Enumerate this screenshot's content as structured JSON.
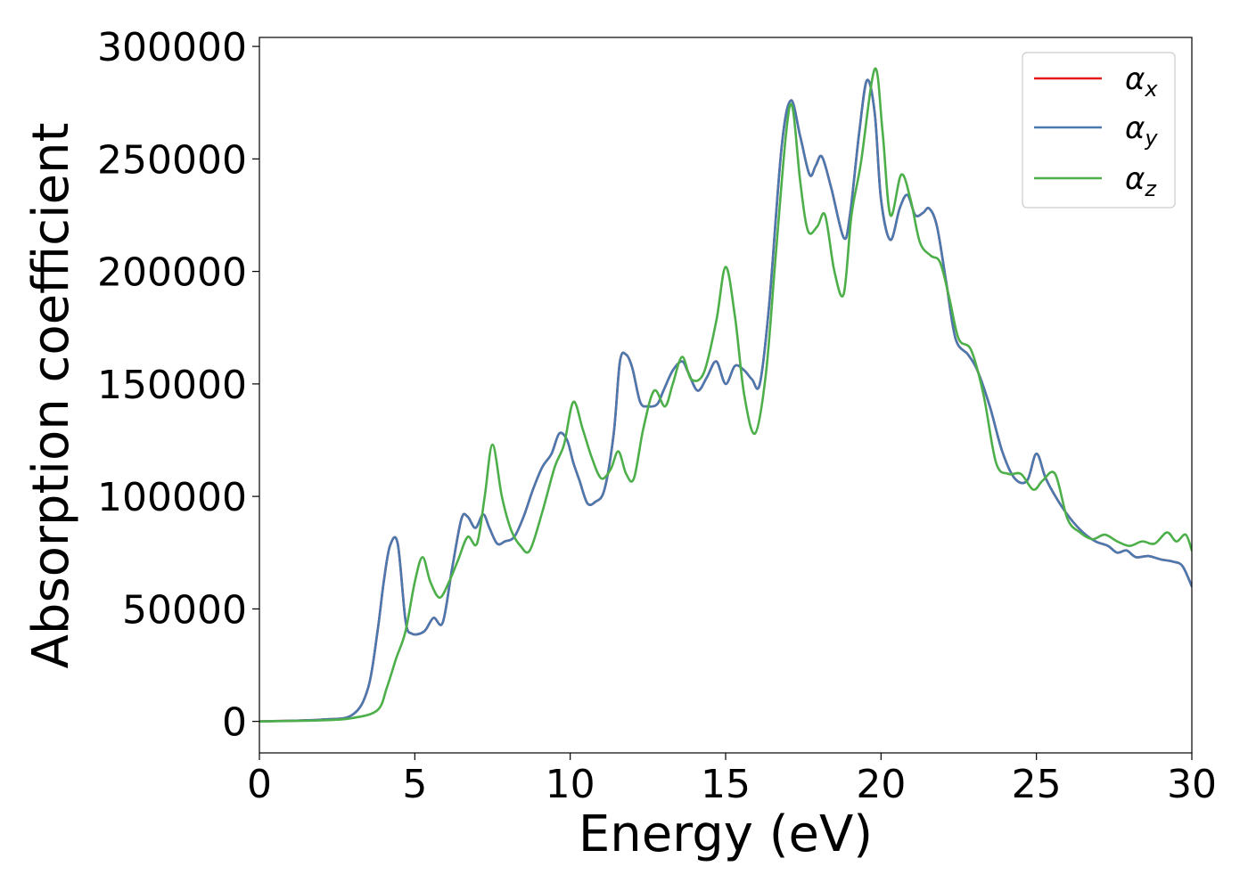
{
  "chart_data": {
    "type": "line",
    "xlabel": "Energy (eV)",
    "ylabel": "Absorption coefficient",
    "xlim": [
      0,
      30
    ],
    "ylim": [
      -14000,
      304000
    ],
    "xticks": [
      0,
      5,
      10,
      15,
      20,
      25,
      30
    ],
    "yticks": [
      0,
      50000,
      100000,
      150000,
      200000,
      250000,
      300000
    ],
    "grid": false,
    "legend_position": "top-right",
    "series": [
      {
        "name": "α_x",
        "legend_main": "α",
        "legend_sub": "x",
        "color": "#e41a1c",
        "x": [
          0,
          2,
          3,
          3.5,
          3.8,
          4.0,
          4.2,
          4.45,
          4.7,
          4.9,
          5.3,
          5.6,
          5.9,
          6.2,
          6.5,
          6.7,
          6.95,
          7.2,
          7.4,
          7.65,
          7.9,
          8.2,
          8.5,
          8.8,
          9.1,
          9.4,
          9.65,
          9.9,
          10.1,
          10.3,
          10.55,
          10.8,
          11.1,
          11.4,
          11.6,
          11.8,
          12.0,
          12.25,
          12.5,
          12.8,
          13.0,
          13.3,
          13.6,
          13.8,
          14.1,
          14.4,
          14.7,
          15.0,
          15.3,
          15.6,
          15.85,
          16.1,
          16.4,
          16.8,
          17.1,
          17.4,
          17.7,
          17.9,
          18.1,
          18.4,
          18.8,
          19.0,
          19.3,
          19.55,
          19.8,
          20.0,
          20.3,
          20.6,
          20.85,
          21.1,
          21.35,
          21.55,
          21.8,
          22.1,
          22.4,
          22.8,
          23.1,
          23.5,
          23.9,
          24.3,
          24.7,
          25.0,
          25.3,
          25.7,
          26.1,
          26.5,
          26.9,
          27.3,
          27.6,
          27.9,
          28.2,
          28.6,
          29.0,
          29.4,
          29.7,
          30.0
        ],
        "y": [
          0,
          800,
          3000,
          15000,
          40000,
          62000,
          78000,
          79000,
          45000,
          39000,
          40000,
          46000,
          44000,
          68000,
          90000,
          91000,
          86000,
          92000,
          86000,
          79000,
          80000,
          82000,
          91000,
          103000,
          113000,
          119000,
          128000,
          125000,
          115000,
          107000,
          97000,
          97500,
          103000,
          128000,
          160000,
          163000,
          157000,
          142000,
          140000,
          141000,
          147000,
          156000,
          160000,
          155000,
          147000,
          153000,
          160000,
          150000,
          158000,
          156000,
          152000,
          150000,
          185000,
          255000,
          276000,
          260000,
          243000,
          247000,
          251000,
          237000,
          215000,
          225000,
          262000,
          285000,
          270000,
          232000,
          214000,
          228000,
          234000,
          225000,
          226000,
          228000,
          220000,
          195000,
          170000,
          163000,
          156000,
          140000,
          120000,
          108000,
          107000,
          119000,
          108000,
          98000,
          90000,
          84000,
          80000,
          78000,
          75000,
          76000,
          73000,
          73500,
          72000,
          71000,
          69000,
          60000
        ]
      },
      {
        "name": "α_y",
        "legend_main": "α",
        "legend_sub": "y",
        "color": "#4a79b0",
        "x": [
          0,
          2,
          3,
          3.5,
          3.8,
          4.0,
          4.2,
          4.45,
          4.7,
          4.9,
          5.3,
          5.6,
          5.9,
          6.2,
          6.5,
          6.7,
          6.95,
          7.2,
          7.4,
          7.65,
          7.9,
          8.2,
          8.5,
          8.8,
          9.1,
          9.4,
          9.65,
          9.9,
          10.1,
          10.3,
          10.55,
          10.8,
          11.1,
          11.4,
          11.6,
          11.8,
          12.0,
          12.25,
          12.5,
          12.8,
          13.0,
          13.3,
          13.6,
          13.8,
          14.1,
          14.4,
          14.7,
          15.0,
          15.3,
          15.6,
          15.85,
          16.1,
          16.4,
          16.8,
          17.1,
          17.4,
          17.7,
          17.9,
          18.1,
          18.4,
          18.8,
          19.0,
          19.3,
          19.55,
          19.8,
          20.0,
          20.3,
          20.6,
          20.85,
          21.1,
          21.35,
          21.55,
          21.8,
          22.1,
          22.4,
          22.8,
          23.1,
          23.5,
          23.9,
          24.3,
          24.7,
          25.0,
          25.3,
          25.7,
          26.1,
          26.5,
          26.9,
          27.3,
          27.6,
          27.9,
          28.2,
          28.6,
          29.0,
          29.4,
          29.7,
          30.0
        ],
        "y": [
          0,
          800,
          3000,
          15000,
          40000,
          62000,
          78000,
          79000,
          45000,
          39000,
          40000,
          46000,
          44000,
          68000,
          90000,
          91000,
          86000,
          92000,
          86000,
          79000,
          80000,
          82000,
          91000,
          103000,
          113000,
          119000,
          128000,
          125000,
          115000,
          107000,
          97000,
          97500,
          103000,
          128000,
          160000,
          163000,
          157000,
          142000,
          140000,
          141000,
          147000,
          156000,
          160000,
          155000,
          147000,
          153000,
          160000,
          150000,
          158000,
          156000,
          152000,
          150000,
          185000,
          255000,
          276000,
          260000,
          243000,
          247000,
          251000,
          237000,
          215000,
          225000,
          262000,
          285000,
          270000,
          232000,
          214000,
          228000,
          234000,
          225000,
          226000,
          228000,
          220000,
          195000,
          170000,
          163000,
          156000,
          140000,
          120000,
          108000,
          107000,
          119000,
          108000,
          98000,
          90000,
          84000,
          80000,
          78000,
          75000,
          76000,
          73000,
          73500,
          72000,
          71000,
          69000,
          60000
        ]
      },
      {
        "name": "α_z",
        "legend_main": "α",
        "legend_sub": "z",
        "color": "#4daf4a",
        "x": [
          0,
          2,
          3,
          3.8,
          4.1,
          4.4,
          4.7,
          5.0,
          5.25,
          5.5,
          5.8,
          6.1,
          6.4,
          6.7,
          7.0,
          7.25,
          7.5,
          7.8,
          8.1,
          8.4,
          8.7,
          9.1,
          9.5,
          9.8,
          10.1,
          10.4,
          10.7,
          11.0,
          11.3,
          11.55,
          11.8,
          12.05,
          12.35,
          12.7,
          13.05,
          13.3,
          13.6,
          13.9,
          14.3,
          14.7,
          15.0,
          15.3,
          15.6,
          15.95,
          16.3,
          16.6,
          16.95,
          17.15,
          17.4,
          17.65,
          17.95,
          18.2,
          18.5,
          18.8,
          19.05,
          19.35,
          19.8,
          20.05,
          20.3,
          20.65,
          20.95,
          21.25,
          21.6,
          21.9,
          22.2,
          22.5,
          22.9,
          23.3,
          23.7,
          24.1,
          24.5,
          24.9,
          25.2,
          25.6,
          26.0,
          26.4,
          26.8,
          27.2,
          27.6,
          28.0,
          28.4,
          28.8,
          29.2,
          29.5,
          29.8,
          30.0
        ],
        "y": [
          0,
          500,
          1500,
          5000,
          15000,
          28000,
          40000,
          62000,
          73000,
          62000,
          55000,
          62000,
          72000,
          82000,
          79000,
          100000,
          123000,
          100000,
          85000,
          78000,
          76000,
          93000,
          113000,
          123000,
          142000,
          130000,
          117000,
          108000,
          112000,
          120000,
          110000,
          108000,
          130000,
          147000,
          140000,
          150000,
          162000,
          152000,
          155000,
          178000,
          202000,
          180000,
          145000,
          128000,
          155000,
          205000,
          262000,
          273000,
          240000,
          218000,
          220000,
          225000,
          200000,
          190000,
          225000,
          248000,
          290000,
          262000,
          225000,
          243000,
          232000,
          213000,
          207000,
          204000,
          188000,
          170000,
          165000,
          145000,
          115000,
          110000,
          110000,
          103000,
          107000,
          110000,
          90000,
          84000,
          81000,
          83000,
          80000,
          78000,
          80000,
          79000,
          84000,
          80000,
          83000,
          76000
        ]
      }
    ]
  }
}
